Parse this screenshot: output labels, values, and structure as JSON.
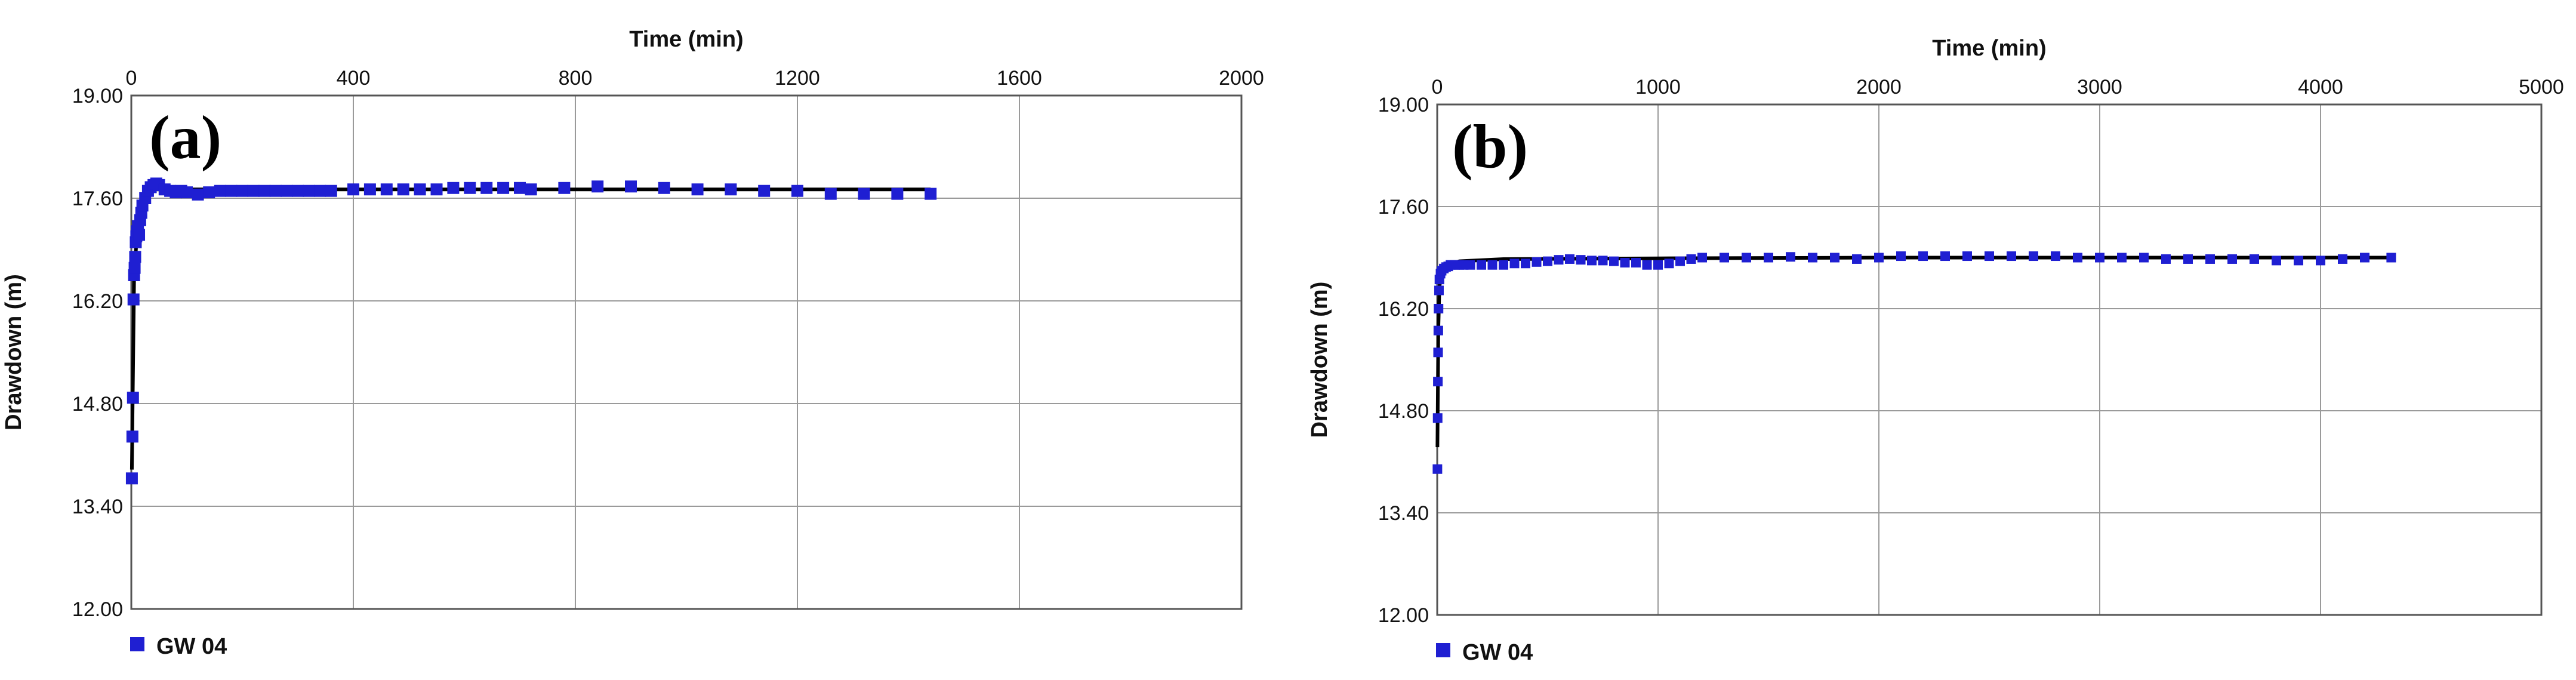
{
  "colors": {
    "series": "#1f1fd2",
    "fit": "#000000",
    "grid": "#9a9a9a",
    "frame": "#555555"
  },
  "chart_data": [
    {
      "type": "scatter",
      "panel_label": "(a)",
      "xlabel": "Time (min)",
      "ylabel": "Drawdown (m)",
      "xlim": [
        0,
        2000
      ],
      "ylim": [
        12.0,
        19.0
      ],
      "x_ticks": [
        "0",
        "400",
        "800",
        "1200",
        "1600",
        "2000"
      ],
      "y_ticks": [
        "12.00",
        "13.40",
        "14.80",
        "16.20",
        "17.60",
        "19.00"
      ],
      "x_axis_position": "top",
      "grid": true,
      "legend_position": "bottom-left",
      "series": [
        {
          "name": "GW 04",
          "marker": "square",
          "x": [
            1,
            2,
            3,
            4,
            5,
            6,
            7,
            8,
            9,
            10,
            12,
            14,
            16,
            18,
            20,
            25,
            30,
            35,
            40,
            45,
            50,
            60,
            70,
            80,
            90,
            100,
            120,
            140,
            160,
            180,
            200,
            220,
            240,
            260,
            280,
            300,
            320,
            340,
            360,
            400,
            430,
            460,
            490,
            520,
            550,
            580,
            610,
            640,
            670,
            700,
            720,
            780,
            840,
            900,
            960,
            1020,
            1080,
            1140,
            1200,
            1260,
            1320,
            1380,
            1440
          ],
          "y": [
            13.78,
            14.35,
            14.88,
            16.22,
            16.55,
            16.65,
            16.8,
            17.0,
            17.08,
            17.15,
            17.22,
            17.1,
            17.3,
            17.4,
            17.5,
            17.6,
            17.7,
            17.75,
            17.78,
            17.8,
            17.78,
            17.72,
            17.7,
            17.68,
            17.7,
            17.68,
            17.65,
            17.68,
            17.7,
            17.7,
            17.7,
            17.7,
            17.7,
            17.7,
            17.7,
            17.7,
            17.7,
            17.7,
            17.7,
            17.72,
            17.72,
            17.72,
            17.72,
            17.72,
            17.72,
            17.74,
            17.74,
            17.74,
            17.74,
            17.74,
            17.72,
            17.74,
            17.76,
            17.76,
            17.74,
            17.72,
            17.72,
            17.7,
            17.7,
            17.66,
            17.66,
            17.66,
            17.66
          ]
        }
      ],
      "fit_line": {
        "x": [
          1,
          5,
          10,
          20,
          40,
          80,
          150,
          400,
          800,
          1200,
          1440
        ],
        "y": [
          13.9,
          16.5,
          17.1,
          17.5,
          17.72,
          17.72,
          17.72,
          17.72,
          17.72,
          17.72,
          17.72
        ]
      }
    },
    {
      "type": "scatter",
      "panel_label": "(b)",
      "xlabel": "Time (min)",
      "ylabel": "Drawdown (m)",
      "xlim": [
        0,
        5000
      ],
      "ylim": [
        12.0,
        19.0
      ],
      "x_ticks": [
        "0",
        "1000",
        "2000",
        "3000",
        "4000",
        "5000"
      ],
      "y_ticks": [
        "12.00",
        "13.40",
        "14.80",
        "16.20",
        "17.60",
        "19.00"
      ],
      "x_axis_position": "top",
      "grid": true,
      "legend_position": "bottom-left",
      "series": [
        {
          "name": "GW 04",
          "marker": "square",
          "x": [
            1,
            2,
            3,
            4,
            5,
            6,
            8,
            10,
            15,
            20,
            30,
            40,
            50,
            60,
            80,
            100,
            120,
            150,
            200,
            250,
            300,
            350,
            400,
            450,
            500,
            550,
            600,
            650,
            700,
            750,
            800,
            850,
            900,
            950,
            1000,
            1050,
            1100,
            1150,
            1200,
            1300,
            1400,
            1500,
            1600,
            1700,
            1800,
            1900,
            2000,
            2100,
            2200,
            2300,
            2400,
            2500,
            2600,
            2700,
            2800,
            2900,
            3000,
            3100,
            3200,
            3300,
            3400,
            3500,
            3600,
            3700,
            3800,
            3900,
            4000,
            4100,
            4200,
            4320
          ],
          "y": [
            14.0,
            14.7,
            15.2,
            15.6,
            15.9,
            16.2,
            16.45,
            16.6,
            16.68,
            16.72,
            16.75,
            16.77,
            16.78,
            16.8,
            16.8,
            16.8,
            16.8,
            16.8,
            16.8,
            16.8,
            16.8,
            16.82,
            16.82,
            16.84,
            16.85,
            16.87,
            16.88,
            16.87,
            16.86,
            16.86,
            16.85,
            16.83,
            16.83,
            16.8,
            16.8,
            16.82,
            16.85,
            16.88,
            16.9,
            16.9,
            16.9,
            16.9,
            16.91,
            16.9,
            16.9,
            16.88,
            16.9,
            16.92,
            16.92,
            16.92,
            16.92,
            16.92,
            16.92,
            16.92,
            16.92,
            16.9,
            16.9,
            16.9,
            16.9,
            16.88,
            16.88,
            16.88,
            16.88,
            16.88,
            16.86,
            16.86,
            16.86,
            16.88,
            16.9,
            16.9
          ]
        }
      ],
      "fit_line": {
        "x": [
          1,
          5,
          10,
          20,
          50,
          100,
          300,
          1000,
          2000,
          3000,
          4320
        ],
        "y": [
          14.3,
          15.9,
          16.5,
          16.7,
          16.8,
          16.85,
          16.88,
          16.89,
          16.9,
          16.9,
          16.9
        ]
      }
    }
  ]
}
